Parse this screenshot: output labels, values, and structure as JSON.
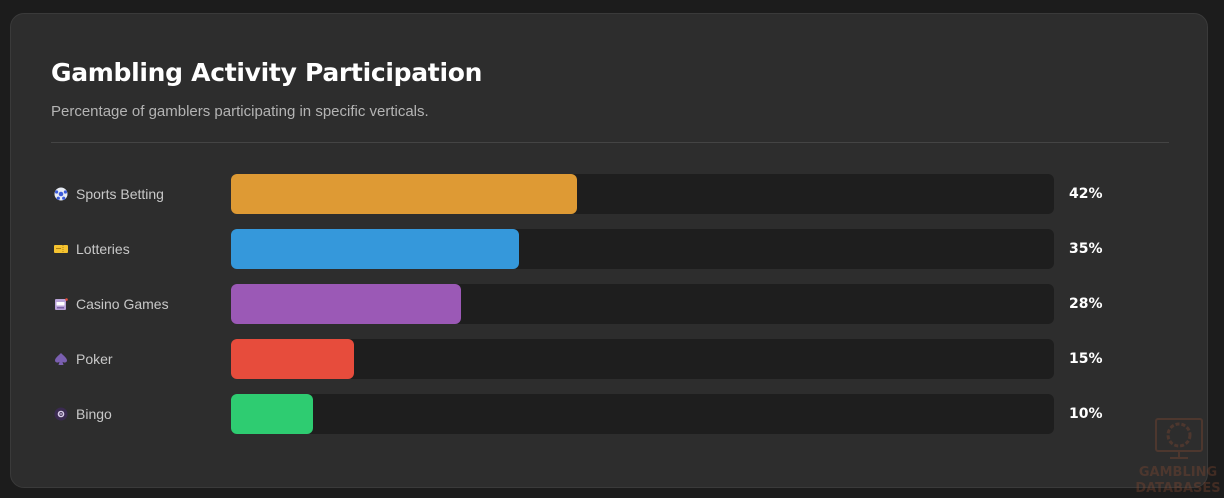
{
  "header": {
    "title": "Gambling Activity Participation",
    "subtitle": "Percentage of gamblers participating in specific verticals."
  },
  "chart_data": {
    "type": "bar",
    "orientation": "horizontal",
    "categories": [
      "Sports Betting",
      "Lotteries",
      "Casino Games",
      "Poker",
      "Bingo"
    ],
    "values": [
      42,
      35,
      28,
      15,
      10
    ],
    "value_labels": [
      "42%",
      "35%",
      "28%",
      "15%",
      "10%"
    ],
    "icons": [
      "soccer-ball-icon",
      "ticket-icon",
      "slot-machine-icon",
      "spade-icon",
      "bingo-ball-icon"
    ],
    "colors": [
      "#de9a34",
      "#3598db",
      "#9b59b6",
      "#e74c3c",
      "#2ecc71"
    ],
    "xlim": [
      0,
      100
    ],
    "unit": "%",
    "grid": false
  },
  "watermark": {
    "text": "GAMBLING DATABASES"
  }
}
